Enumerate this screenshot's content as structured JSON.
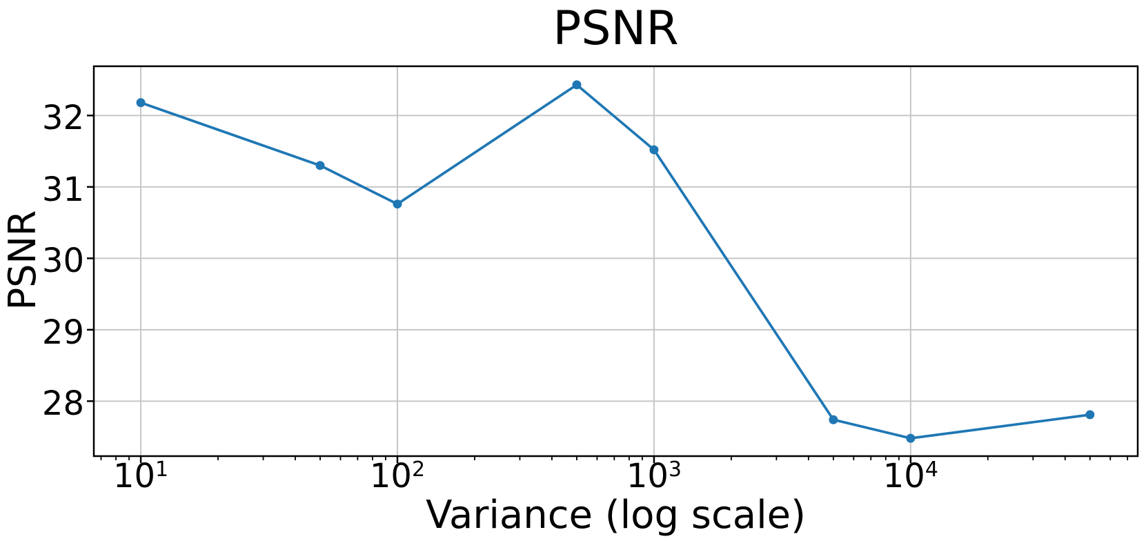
{
  "chart_data": {
    "type": "line",
    "title": "PSNR",
    "xlabel": "Variance (log scale)",
    "ylabel": "PSNR",
    "x_scale": "log",
    "x": [
      10,
      50,
      100,
      500,
      1000,
      5000,
      10000,
      50000
    ],
    "y": [
      32.18,
      31.3,
      30.76,
      32.43,
      31.52,
      27.74,
      27.48,
      27.81
    ],
    "x_tick_labels": [
      {
        "base": "10",
        "exp": "1",
        "value": 10
      },
      {
        "base": "10",
        "exp": "2",
        "value": 100
      },
      {
        "base": "10",
        "exp": "3",
        "value": 1000
      },
      {
        "base": "10",
        "exp": "4",
        "value": 10000
      }
    ],
    "y_ticks": [
      28,
      29,
      30,
      31,
      32
    ],
    "xlim_log10": [
      0.817,
      4.885
    ],
    "ylim": [
      27.23,
      32.69
    ],
    "grid": true,
    "line_color": "#1f77b4",
    "marker": "circle",
    "grid_color": "#c6c6c6",
    "spine_color": "#000000",
    "text_color": "#000000",
    "background": "#ffffff"
  }
}
